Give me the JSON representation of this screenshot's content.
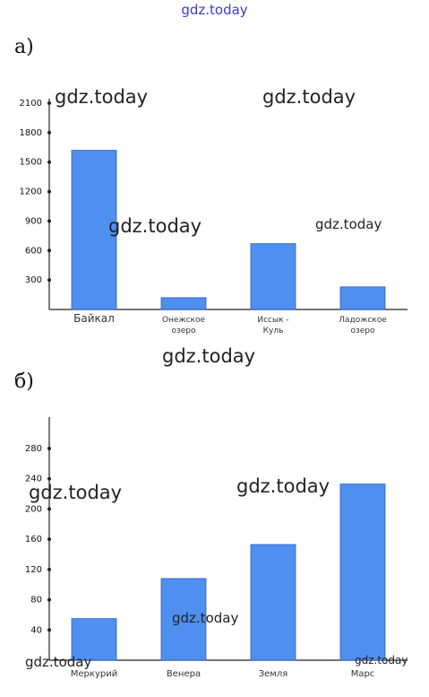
{
  "watermark_top": "gdz.today",
  "watermark": "gdz.today",
  "part_labels": [
    "а)",
    "б)"
  ],
  "chart_data": [
    {
      "type": "bar",
      "categories": [
        "Байкал",
        "Онежское озеро",
        "Иссык - Куль",
        "Ладожское озеро"
      ],
      "values": [
        1620,
        120,
        670,
        230
      ],
      "yticks": [
        300,
        600,
        900,
        1200,
        1500,
        1800,
        2100
      ],
      "ylim": [
        0,
        2100
      ],
      "grid": false,
      "bar_color": "#4f8ff0"
    },
    {
      "type": "bar",
      "categories": [
        "Меркурий",
        "Венера",
        "Земля",
        "Марс"
      ],
      "values": [
        55,
        108,
        153,
        233
      ],
      "yticks": [
        40,
        80,
        120,
        160,
        200,
        240,
        280
      ],
      "ylim": [
        0,
        280
      ],
      "grid": false,
      "bar_color": "#4f8ff0"
    }
  ]
}
